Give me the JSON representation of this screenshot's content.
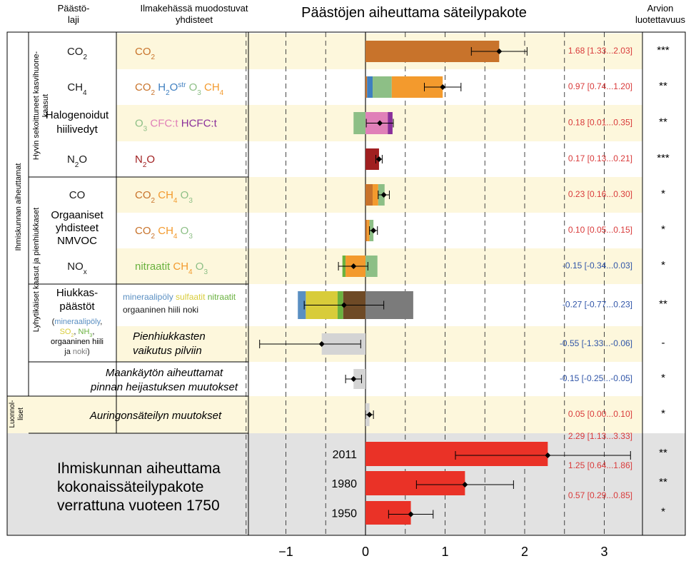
{
  "header": {
    "col_type_line1": "Päästö-",
    "col_type_line2": "laji",
    "col_compounds_line1": "Ilmakehässä muodostuvat",
    "col_compounds_line2": "yhdisteet",
    "title": "Päästöjen aiheuttama säteilypakote",
    "col_conf_line1": "Arvion",
    "col_conf_line2": "luotettavuus"
  },
  "groups": {
    "anthropogenic": "Ihmiskunnan aiheuttamat",
    "wmghg_line1": "Hyvin sekoittuneet kasvihuone-",
    "wmghg_line2": "kaasut",
    "shortlived": "Lyhytikäiset kaasut ja pienhiukkaset",
    "natural_line1": "Luonnol-",
    "natural_line2": "liset"
  },
  "colors": {
    "CO2": "#c8732b",
    "H2Ostr": "#3f7fc0",
    "O3": "#8dbf86",
    "CH4": "#f39a2d",
    "CFC": "#e080b8",
    "HCFC": "#8a2f9a",
    "N2O": "#a01f20",
    "nitrate": "#6ab23f",
    "mineral_dust": "#5a8fc2",
    "sulfate": "#d8cc3a",
    "organic_carbon": "#6e4a26",
    "black_carbon": "#7b7b7b",
    "cloud": "#d4d4d4",
    "total": "#ea3227",
    "value_positive": "#d93a3a",
    "value_negative": "#3055a8",
    "row_band": "#fdf7dc",
    "total_band": "#e2e2e2"
  },
  "rows": [
    {
      "id": "co2",
      "band": true,
      "emission": [
        {
          "t": "CO"
        },
        {
          "t": "2",
          "sub": true
        }
      ],
      "formed": [
        {
          "t": "CO",
          "c": "CO2"
        },
        {
          "t": "2",
          "sub": true,
          "c": "CO2"
        }
      ],
      "value": "1.68 [1.33...2.03]",
      "sign": "pos",
      "conf": "***"
    },
    {
      "id": "ch4",
      "band": false,
      "emission": [
        {
          "t": "CH"
        },
        {
          "t": "4",
          "sub": true
        }
      ],
      "formed": [
        {
          "t": "CO",
          "c": "CO2"
        },
        {
          "t": "2",
          "sub": true,
          "c": "CO2"
        },
        {
          "t": "   "
        },
        {
          "t": "H",
          "c": "H2Ostr"
        },
        {
          "t": "2",
          "sub": true,
          "c": "H2Ostr"
        },
        {
          "t": "O",
          "c": "H2Ostr"
        },
        {
          "t": "str",
          "sup": true,
          "c": "H2Ostr"
        },
        {
          "t": "  "
        },
        {
          "t": "O",
          "c": "O3"
        },
        {
          "t": "3",
          "sub": true,
          "c": "O3"
        },
        {
          "t": "  "
        },
        {
          "t": "CH",
          "c": "CH4"
        },
        {
          "t": "4",
          "sub": true,
          "c": "CH4"
        }
      ],
      "value": "0.97 [0.74...1.20]",
      "sign": "pos",
      "conf": "**"
    },
    {
      "id": "halo",
      "band": true,
      "emission_line1": "Halogenoidut",
      "emission_line2": "hiilivedyt",
      "formed": [
        {
          "t": "O",
          "c": "O3"
        },
        {
          "t": "3",
          "sub": true,
          "c": "O3"
        },
        {
          "t": "    "
        },
        {
          "t": "CFC:t",
          "c": "CFC"
        },
        {
          "t": "    "
        },
        {
          "t": "HCFC:t",
          "c": "HCFC"
        }
      ],
      "value": "0.18 [0.01...0.35]",
      "sign": "pos",
      "conf": "**"
    },
    {
      "id": "n2o",
      "band": false,
      "emission": [
        {
          "t": "N"
        },
        {
          "t": "2",
          "sub": true
        },
        {
          "t": "O"
        }
      ],
      "formed": [
        {
          "t": "N",
          "c": "N2O"
        },
        {
          "t": "2",
          "sub": true,
          "c": "N2O"
        },
        {
          "t": "O",
          "c": "N2O"
        }
      ],
      "value": "0.17 [0.13...0.21]",
      "sign": "pos",
      "conf": "***"
    },
    {
      "id": "co",
      "band": true,
      "emission": [
        {
          "t": "CO"
        }
      ],
      "formed": [
        {
          "t": "CO",
          "c": "CO2"
        },
        {
          "t": "2",
          "sub": true,
          "c": "CO2"
        },
        {
          "t": "   "
        },
        {
          "t": "CH",
          "c": "CH4"
        },
        {
          "t": "4",
          "sub": true,
          "c": "CH4"
        },
        {
          "t": "  "
        },
        {
          "t": "O",
          "c": "O3"
        },
        {
          "t": "3",
          "sub": true,
          "c": "O3"
        }
      ],
      "value": "0.23 [0.16...0.30]",
      "sign": "pos",
      "conf": "*"
    },
    {
      "id": "nmvoc",
      "band": false,
      "emission_line1": "Orgaaniset",
      "emission_line2": "yhdisteet",
      "emission_line3": "NMVOC",
      "formed": [
        {
          "t": "CO",
          "c": "CO2"
        },
        {
          "t": "2",
          "sub": true,
          "c": "CO2"
        },
        {
          "t": "   "
        },
        {
          "t": "CH",
          "c": "CH4"
        },
        {
          "t": "4",
          "sub": true,
          "c": "CH4"
        },
        {
          "t": "  "
        },
        {
          "t": "O",
          "c": "O3"
        },
        {
          "t": "3",
          "sub": true,
          "c": "O3"
        }
      ],
      "value": "0.10 [0.05...0.15]",
      "sign": "pos",
      "conf": "*"
    },
    {
      "id": "nox",
      "band": true,
      "emission": [
        {
          "t": "NO"
        },
        {
          "t": "x",
          "sub": true
        }
      ],
      "formed": [
        {
          "t": "nitraatit",
          "c": "nitrate"
        },
        {
          "t": "    "
        },
        {
          "t": "CH",
          "c": "CH4"
        },
        {
          "t": "4",
          "sub": true,
          "c": "CH4"
        },
        {
          "t": "  "
        },
        {
          "t": "O",
          "c": "O3"
        },
        {
          "t": "3",
          "sub": true,
          "c": "O3"
        }
      ],
      "value": "-0.15 [-0.34...0.03]",
      "sign": "neg",
      "conf": "*"
    },
    {
      "id": "aerosol",
      "band": false,
      "emission_line1": "Hiukkas-",
      "emission_line2": "päästöt",
      "emission_list1": [
        {
          "t": "(",
          "c": "text"
        },
        {
          "t": "mineraalipöly",
          "c": "mineral_dust"
        },
        {
          "t": ",",
          "c": "text"
        }
      ],
      "emission_list2": [
        {
          "t": "SO",
          "c": "sulfate"
        },
        {
          "t": "2",
          "sub": true,
          "c": "sulfate"
        },
        {
          "t": ", ",
          "c": "text"
        },
        {
          "t": "NH",
          "c": "nitrate"
        },
        {
          "t": "3",
          "sub": true,
          "c": "nitrate"
        },
        {
          "t": ",",
          "c": "text"
        }
      ],
      "emission_list3": "orgaaninen hiili",
      "emission_list4": [
        {
          "t": "ja ",
          "c": "text"
        },
        {
          "t": "noki",
          "c": "black_carbon"
        },
        {
          "t": ")",
          "c": "text"
        }
      ],
      "formed_line1": [
        {
          "t": "mineraalipöly ",
          "c": "mineral_dust"
        },
        {
          "t": "sulfaatit ",
          "c": "sulfate"
        },
        {
          "t": "nitraatit",
          "c": "nitrate"
        }
      ],
      "formed_line2": [
        {
          "t": "orgaaninen hiili   ",
          "c": "text"
        },
        {
          "t": "noki",
          "c": "text"
        }
      ],
      "value": "-0.27 [-0.77...0.23]",
      "sign": "neg",
      "conf": "**"
    },
    {
      "id": "cloud",
      "band": true,
      "formed_italic1": "Pienhiukkasten",
      "formed_italic2": "vaikutus pilviin",
      "value": "-0.55 [-1.33...-0.06]",
      "sign": "neg",
      "conf": "-"
    },
    {
      "id": "albedo",
      "band": false,
      "label_line1": "Maankäytön aiheuttamat",
      "label_line2": "pinnan heijastuksen muutokset",
      "value": "-0.15 [-0.25...-0.05]",
      "sign": "neg",
      "conf": "*"
    },
    {
      "id": "solar",
      "band": true,
      "label": "Auringonsäteilyn muutokset",
      "value": "0.05 [0.00...0.10]",
      "sign": "pos",
      "conf": "*"
    }
  ],
  "total": {
    "label_line1": "Ihmiskunnan aiheuttama",
    "label_line2": "kokonaissäteilypakote",
    "label_line3": "verrattuna vuoteen 1750",
    "years": [
      {
        "year": "2011",
        "value": "2.29 [1.13...3.33]",
        "conf": "**"
      },
      {
        "year": "1980",
        "value": "1.25 [0.64...1.86]",
        "conf": "**"
      },
      {
        "year": "1950",
        "value": "0.57 [0.29...0.85]",
        "conf": "*"
      }
    ]
  },
  "chart_data": {
    "type": "bar",
    "title": "Päästöjen aiheuttama säteilypakote",
    "xlim": [
      -1.5,
      3.5
    ],
    "xticks": [
      -1,
      0,
      1,
      2,
      3
    ],
    "xtick_labels": [
      "−1",
      "0",
      "1",
      "2",
      "3"
    ],
    "gridlines": [
      -1.5,
      -1,
      -0.5,
      0.5,
      1,
      1.5,
      2,
      2.5,
      3
    ],
    "bars": [
      {
        "row": "co2",
        "segments": [
          {
            "comp": "CO2",
            "start": 0,
            "end": 1.68
          }
        ],
        "est": 1.68,
        "lo": 1.33,
        "hi": 2.03
      },
      {
        "row": "ch4",
        "segments": [
          {
            "comp": "CO2",
            "start": 0,
            "end": 0.02
          },
          {
            "comp": "H2Ostr",
            "start": 0.02,
            "end": 0.09
          },
          {
            "comp": "O3",
            "start": 0.09,
            "end": 0.33
          },
          {
            "comp": "CH4",
            "start": 0.33,
            "end": 0.97
          }
        ],
        "est": 0.97,
        "lo": 0.74,
        "hi": 1.2
      },
      {
        "row": "halo",
        "segments": [
          {
            "comp": "O3",
            "start": -0.15,
            "end": 0
          },
          {
            "comp": "CFC",
            "start": 0,
            "end": 0.28
          },
          {
            "comp": "HCFC",
            "start": 0.28,
            "end": 0.34
          }
        ],
        "est": 0.18,
        "lo": 0.01,
        "hi": 0.35
      },
      {
        "row": "n2o",
        "segments": [
          {
            "comp": "N2O",
            "start": 0,
            "end": 0.17
          }
        ],
        "est": 0.17,
        "lo": 0.13,
        "hi": 0.21
      },
      {
        "row": "co",
        "segments": [
          {
            "comp": "CO2",
            "start": 0,
            "end": 0.09
          },
          {
            "comp": "CH4",
            "start": 0.09,
            "end": 0.16
          },
          {
            "comp": "O3",
            "start": 0.16,
            "end": 0.24
          }
        ],
        "est": 0.23,
        "lo": 0.16,
        "hi": 0.3
      },
      {
        "row": "nmvoc",
        "segments": [
          {
            "comp": "CO2",
            "start": 0,
            "end": 0.02
          },
          {
            "comp": "CH4",
            "start": 0.02,
            "end": 0.05
          },
          {
            "comp": "O3",
            "start": 0.05,
            "end": 0.1
          }
        ],
        "est": 0.1,
        "lo": 0.05,
        "hi": 0.15
      },
      {
        "row": "nox",
        "segments": [
          {
            "comp": "nitrate",
            "start": -0.29,
            "end": -0.25
          },
          {
            "comp": "CH4",
            "start": -0.25,
            "end": 0
          },
          {
            "comp": "O3",
            "start": 0,
            "end": 0.15
          }
        ],
        "est": -0.15,
        "lo": -0.34,
        "hi": 0.03
      },
      {
        "row": "aerosol",
        "segments": [
          {
            "comp": "mineral_dust",
            "start": -0.85,
            "end": -0.75
          },
          {
            "comp": "sulfate",
            "start": -0.75,
            "end": -0.35
          },
          {
            "comp": "nitrate",
            "start": -0.35,
            "end": -0.28
          },
          {
            "comp": "organic_carbon",
            "start": -0.28,
            "end": 0
          },
          {
            "comp": "black_carbon",
            "start": 0,
            "end": 0.6
          }
        ],
        "est": -0.27,
        "lo": -0.77,
        "hi": 0.23
      },
      {
        "row": "cloud",
        "segments": [
          {
            "comp": "cloud",
            "start": -0.55,
            "end": 0
          }
        ],
        "est": -0.55,
        "lo": -1.33,
        "hi": -0.06
      },
      {
        "row": "albedo",
        "segments": [
          {
            "comp": "cloud",
            "start": -0.15,
            "end": 0
          }
        ],
        "est": -0.15,
        "lo": -0.25,
        "hi": -0.05
      },
      {
        "row": "solar",
        "segments": [
          {
            "comp": "cloud",
            "start": 0,
            "end": 0.05
          }
        ],
        "est": 0.05,
        "lo": 0.0,
        "hi": 0.1
      },
      {
        "row": "total_2011",
        "segments": [
          {
            "comp": "total",
            "start": 0,
            "end": 2.29
          }
        ],
        "est": 2.29,
        "lo": 1.13,
        "hi": 3.33
      },
      {
        "row": "total_1980",
        "segments": [
          {
            "comp": "total",
            "start": 0,
            "end": 1.25
          }
        ],
        "est": 1.25,
        "lo": 0.64,
        "hi": 1.86
      },
      {
        "row": "total_1950",
        "segments": [
          {
            "comp": "total",
            "start": 0,
            "end": 0.57
          }
        ],
        "est": 0.57,
        "lo": 0.29,
        "hi": 0.85
      }
    ]
  }
}
